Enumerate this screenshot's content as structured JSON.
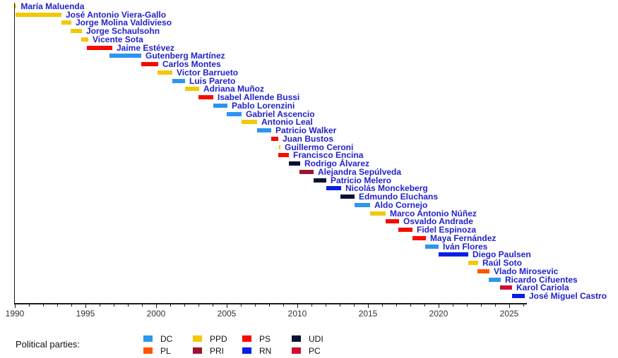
{
  "chart_data": {
    "type": "timeline",
    "title": "",
    "xlabel": "",
    "x_axis": {
      "min": 1990,
      "max": 2026.2,
      "minor_tick_interval": 1,
      "major_tick_interval": 5,
      "major_tick_labels": [
        "1990",
        "1995",
        "2000",
        "2005",
        "2010",
        "2015",
        "2020",
        "2025"
      ]
    },
    "party_colors": {
      "DC": "#2D95F0",
      "PL": "#FF5403",
      "PPD": "#F2C80A",
      "PRI": "#9E1430",
      "PS": "#FA0A00",
      "RN": "#0A1EE6",
      "UDI": "#071135",
      "PC": "#D00D30"
    },
    "series": [
      {
        "name": "María Maluenda",
        "party": "PPD",
        "start": 1990.0,
        "end": 1990.12
      },
      {
        "name": "José Antonio Viera-Gallo",
        "party": "PPD",
        "start": 1990.05,
        "end": 1993.3
      },
      {
        "name": "Jorge Molina Valdivieso",
        "party": "PPD",
        "start": 1993.3,
        "end": 1994.0
      },
      {
        "name": "Jorge Schaulsohn",
        "party": "PPD",
        "start": 1993.95,
        "end": 1994.75
      },
      {
        "name": "Vicente Sota",
        "party": "PPD",
        "start": 1994.7,
        "end": 1995.2
      },
      {
        "name": "Jaime Estévez",
        "party": "PS",
        "start": 1995.1,
        "end": 1996.9
      },
      {
        "name": "Gutenberg Martínez",
        "party": "DC",
        "start": 1996.7,
        "end": 1998.95
      },
      {
        "name": "Carlos Montes",
        "party": "PS",
        "start": 1998.95,
        "end": 2000.15
      },
      {
        "name": "Victor Barrueto",
        "party": "PPD",
        "start": 2000.1,
        "end": 2001.15
      },
      {
        "name": "Luis Pareto",
        "party": "DC",
        "start": 2001.15,
        "end": 2002.05
      },
      {
        "name": "Adriana Muñoz",
        "party": "PPD",
        "start": 2002.05,
        "end": 2003.05
      },
      {
        "name": "Isabel Allende Bussi",
        "party": "PS",
        "start": 2003.0,
        "end": 2004.05
      },
      {
        "name": "Pablo Lorenzini",
        "party": "DC",
        "start": 2004.05,
        "end": 2005.05
      },
      {
        "name": "Gabriel Ascencio",
        "party": "DC",
        "start": 2005.0,
        "end": 2006.05
      },
      {
        "name": "Antonio Leal",
        "party": "PPD",
        "start": 2006.05,
        "end": 2007.15
      },
      {
        "name": "Patricio Walker",
        "party": "DC",
        "start": 2007.15,
        "end": 2008.15
      },
      {
        "name": "Juan Bustos",
        "party": "PS",
        "start": 2008.15,
        "end": 2008.65
      },
      {
        "name": "Guillermo Ceroni",
        "party": "PPD",
        "start": 2008.68,
        "end": 2008.8
      },
      {
        "name": "Francisco Encina",
        "party": "PS",
        "start": 2008.65,
        "end": 2009.4
      },
      {
        "name": "Rodrigo Álvarez",
        "party": "UDI",
        "start": 2009.4,
        "end": 2010.2
      },
      {
        "name": "Alejandra Sepúlveda",
        "party": "PRI",
        "start": 2010.15,
        "end": 2011.15
      },
      {
        "name": "Patricio Melero",
        "party": "UDI",
        "start": 2011.15,
        "end": 2012.05
      },
      {
        "name": "Nicolás Monckeberg",
        "party": "RN",
        "start": 2012.05,
        "end": 2013.1
      },
      {
        "name": "Edmundo Eluchans",
        "party": "UDI",
        "start": 2013.05,
        "end": 2014.05
      },
      {
        "name": "Aldo Cornejo",
        "party": "DC",
        "start": 2014.05,
        "end": 2015.15
      },
      {
        "name": "Marco Antonio Núñez",
        "party": "PPD",
        "start": 2015.15,
        "end": 2016.25
      },
      {
        "name": "Osvaldo Andrade",
        "party": "PS",
        "start": 2016.25,
        "end": 2017.2
      },
      {
        "name": "Fidel Espinoza",
        "party": "PS",
        "start": 2017.15,
        "end": 2018.15
      },
      {
        "name": "Maya Fernández",
        "party": "PS",
        "start": 2018.15,
        "end": 2019.1
      },
      {
        "name": "Iván Flores",
        "party": "DC",
        "start": 2019.05,
        "end": 2020.0
      },
      {
        "name": "Diego Paulsen",
        "party": "RN",
        "start": 2020.0,
        "end": 2022.1
      },
      {
        "name": "Raúl Soto",
        "party": "PPD",
        "start": 2022.1,
        "end": 2022.8
      },
      {
        "name": "Vlado Mirosevic",
        "party": "PL",
        "start": 2022.75,
        "end": 2023.6
      },
      {
        "name": "Ricardo Cifuentes",
        "party": "DC",
        "start": 2023.55,
        "end": 2024.4
      },
      {
        "name": "Karol Cariola",
        "party": "PC",
        "start": 2024.35,
        "end": 2025.2
      },
      {
        "name": "José Miguel Castro",
        "party": "RN",
        "start": 2025.2,
        "end": 2026.1
      }
    ]
  },
  "legend": {
    "title": "Political parties:",
    "columns": [
      [
        {
          "label": "DC"
        },
        {
          "label": "PL"
        }
      ],
      [
        {
          "label": "PPD"
        },
        {
          "label": "PRI"
        }
      ],
      [
        {
          "label": "PS"
        },
        {
          "label": "RN"
        }
      ],
      [
        {
          "label": "UDI"
        },
        {
          "label": "PC"
        }
      ]
    ]
  },
  "colors": {
    "name_link": "#2222CC",
    "axis": "#1a1a1a",
    "axis_label": "#333333",
    "background": "#ffffff"
  }
}
